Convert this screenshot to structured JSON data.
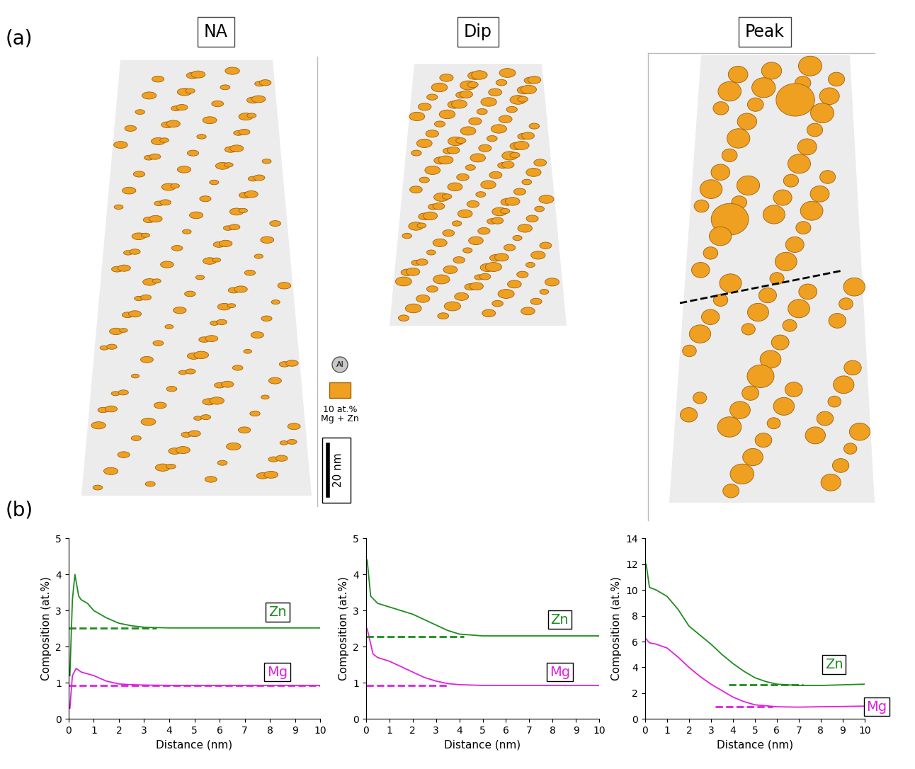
{
  "panel_a": {
    "label": "(a)",
    "reconstructions": [
      "NA",
      "Dip",
      "Peak"
    ],
    "atom_legend": "Al",
    "isosurface_legend": [
      "10 at.%",
      "Mg + Zn"
    ],
    "scale_bar": "20 nm"
  },
  "panel_b": {
    "label": "(b)"
  },
  "chart_data": [
    {
      "type": "line",
      "x_label": "Distance (nm)",
      "y_label": "Composition (at.%)",
      "xlim": [
        0,
        10
      ],
      "xticks": [
        0,
        1,
        2,
        3,
        4,
        5,
        6,
        7,
        8,
        9,
        10
      ],
      "ylim": [
        0,
        5
      ],
      "yticks": [
        0,
        1,
        2,
        3,
        4,
        5
      ],
      "series": [
        {
          "name": "Zn",
          "color": "#1e8c1e",
          "line_style": "solid",
          "x": [
            0.05,
            0.15,
            0.25,
            0.4,
            0.5,
            0.75,
            1.0,
            1.25,
            1.5,
            2.0,
            2.5,
            3.0,
            4.0,
            5.0,
            6.0,
            7.0,
            8.0,
            9.0,
            10.0
          ],
          "values": [
            1.2,
            3.3,
            4.0,
            3.4,
            3.3,
            3.2,
            3.0,
            2.9,
            2.8,
            2.65,
            2.58,
            2.54,
            2.52,
            2.52,
            2.52,
            2.52,
            2.52,
            2.52,
            2.52
          ]
        },
        {
          "name": "Mg",
          "color": "#e020e0",
          "line_style": "solid",
          "x": [
            0.05,
            0.15,
            0.3,
            0.5,
            0.75,
            1.0,
            1.5,
            2.0,
            2.5,
            3.0,
            4.0,
            5.0,
            6.0,
            7.0,
            8.0,
            9.0,
            10.0
          ],
          "values": [
            0.3,
            1.2,
            1.4,
            1.3,
            1.25,
            1.2,
            1.05,
            0.97,
            0.95,
            0.94,
            0.93,
            0.93,
            0.93,
            0.93,
            0.93,
            0.93,
            0.93
          ]
        }
      ],
      "reference_lines": [
        {
          "series": "Zn",
          "value": 2.52,
          "x": [
            0,
            3.5
          ],
          "color": "#1e8c1e",
          "line_style": "dashed"
        },
        {
          "series": "Mg",
          "value": 0.93,
          "x": [
            0,
            10
          ],
          "color": "#e020e0",
          "line_style": "dashed"
        }
      ]
    },
    {
      "type": "line",
      "x_label": "Distance (nm)",
      "y_label": "Composition (at.%)",
      "xlim": [
        0,
        10
      ],
      "xticks": [
        0,
        1,
        2,
        3,
        4,
        5,
        6,
        7,
        8,
        9,
        10
      ],
      "ylim": [
        0,
        5
      ],
      "yticks": [
        0,
        1,
        2,
        3,
        4,
        5
      ],
      "series": [
        {
          "name": "Zn",
          "color": "#1e8c1e",
          "line_style": "solid",
          "x": [
            0.05,
            0.2,
            0.5,
            1.0,
            1.5,
            2.0,
            2.5,
            3.0,
            3.5,
            4.0,
            5.0,
            6.0,
            7.0,
            8.0,
            9.0,
            10.0
          ],
          "values": [
            4.4,
            3.4,
            3.2,
            3.1,
            3.0,
            2.9,
            2.75,
            2.6,
            2.45,
            2.35,
            2.3,
            2.3,
            2.3,
            2.3,
            2.3,
            2.3
          ]
        },
        {
          "name": "Mg",
          "color": "#e020e0",
          "line_style": "solid",
          "x": [
            0.05,
            0.3,
            0.5,
            1.0,
            1.5,
            2.0,
            2.5,
            3.0,
            3.5,
            4.0,
            5.0,
            6.0,
            7.0,
            8.0,
            9.0,
            10.0
          ],
          "values": [
            2.5,
            1.8,
            1.7,
            1.6,
            1.45,
            1.3,
            1.15,
            1.05,
            0.98,
            0.95,
            0.93,
            0.93,
            0.93,
            0.93,
            0.93,
            0.93
          ]
        }
      ],
      "reference_lines": [
        {
          "series": "Zn",
          "value": 2.28,
          "x": [
            0,
            4.2
          ],
          "color": "#1e8c1e",
          "line_style": "dashed"
        },
        {
          "series": "Mg",
          "value": 0.93,
          "x": [
            0,
            3.5
          ],
          "color": "#e020e0",
          "line_style": "dashed"
        }
      ]
    },
    {
      "type": "line",
      "x_label": "Distance (nm)",
      "y_label": "Composition (at.%)",
      "xlim": [
        0,
        10
      ],
      "xticks": [
        0,
        1,
        2,
        3,
        4,
        5,
        6,
        7,
        8,
        9,
        10
      ],
      "ylim": [
        0,
        14
      ],
      "yticks": [
        0,
        2,
        4,
        6,
        8,
        10,
        12,
        14
      ],
      "series": [
        {
          "name": "Zn",
          "color": "#1e8c1e",
          "line_style": "solid",
          "x": [
            0.05,
            0.2,
            0.5,
            1.0,
            1.5,
            2.0,
            2.5,
            3.0,
            3.5,
            4.0,
            4.5,
            5.0,
            5.5,
            6.0,
            7.0,
            8.0,
            9.0,
            10.0
          ],
          "values": [
            12.0,
            10.2,
            10.0,
            9.5,
            8.5,
            7.2,
            6.5,
            5.8,
            5.0,
            4.3,
            3.7,
            3.2,
            2.9,
            2.7,
            2.6,
            2.6,
            2.65,
            2.7
          ]
        },
        {
          "name": "Mg",
          "color": "#e020e0",
          "line_style": "solid",
          "x": [
            0.05,
            0.2,
            0.5,
            1.0,
            1.5,
            2.0,
            2.5,
            3.0,
            3.5,
            4.0,
            4.5,
            5.0,
            6.0,
            7.0,
            8.0,
            9.0,
            10.0
          ],
          "values": [
            6.2,
            5.9,
            5.8,
            5.5,
            4.8,
            4.0,
            3.3,
            2.7,
            2.2,
            1.7,
            1.35,
            1.1,
            0.95,
            0.92,
            0.95,
            0.97,
            1.0
          ]
        }
      ],
      "reference_lines": [
        {
          "series": "Zn",
          "value": 2.65,
          "x": [
            3.8,
            7.2
          ],
          "color": "#1e8c1e",
          "line_style": "dashed"
        },
        {
          "series": "Mg",
          "value": 0.95,
          "x": [
            3.2,
            5.8
          ],
          "color": "#e020e0",
          "line_style": "dashed"
        }
      ]
    }
  ]
}
